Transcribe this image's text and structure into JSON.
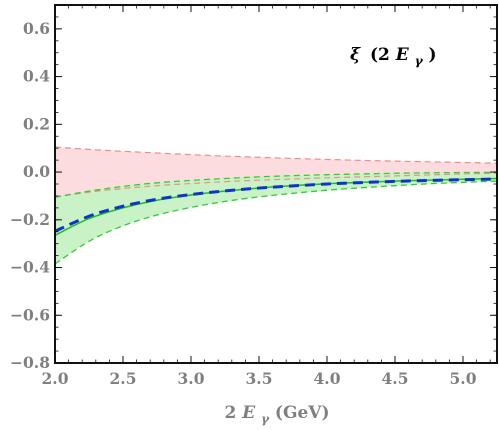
{
  "chart_data": {
    "type": "area",
    "title": "",
    "annotation": {
      "symbol": "ξ",
      "open": "(2 ",
      "var": "E",
      "sub": "γ",
      "close": ")"
    },
    "xlabel": {
      "prefix": "2 ",
      "var": "E",
      "sub": "γ",
      "unit": " (GeV)"
    },
    "ylabel": "",
    "xlim": [
      2.0,
      5.25
    ],
    "ylim": [
      -0.8,
      0.7
    ],
    "xticks": [
      2.0,
      2.5,
      3.0,
      3.5,
      4.0,
      4.5,
      5.0
    ],
    "yticks": [
      -0.8,
      -0.6,
      -0.4,
      -0.2,
      0.0,
      0.2,
      0.4,
      0.6
    ],
    "xtick_labels": [
      "2.0",
      "2.5",
      "3.0",
      "3.5",
      "4.0",
      "4.5",
      "5.0"
    ],
    "ytick_labels": [
      "−0.8",
      "−0.6",
      "−0.4",
      "−0.2",
      "0.0",
      "0.2",
      "0.4",
      "0.6"
    ],
    "grid": false,
    "x": [
      2.0,
      2.25,
      2.5,
      2.75,
      3.0,
      3.25,
      3.5,
      3.75,
      4.0,
      4.25,
      4.5,
      4.75,
      5.0,
      5.25
    ],
    "series": [
      {
        "role": "pink-band-upper",
        "values": [
          0.105,
          0.095,
          0.087,
          0.08,
          0.073,
          0.067,
          0.062,
          0.057,
          0.053,
          0.049,
          0.046,
          0.043,
          0.04,
          0.037
        ]
      },
      {
        "role": "pink-band-lower",
        "values": [
          -0.105,
          -0.084,
          -0.069,
          -0.057,
          -0.048,
          -0.04,
          -0.034,
          -0.029,
          -0.024,
          -0.02,
          -0.016,
          -0.012,
          -0.008,
          -0.005
        ]
      },
      {
        "role": "green-band-upper",
        "values": [
          -0.105,
          -0.08,
          -0.06,
          -0.045,
          -0.035,
          -0.027,
          -0.02,
          -0.015,
          -0.011,
          -0.008,
          -0.005,
          -0.003,
          -0.002,
          -0.001
        ]
      },
      {
        "role": "green-band-lower",
        "values": [
          -0.385,
          -0.29,
          -0.225,
          -0.18,
          -0.148,
          -0.123,
          -0.104,
          -0.089,
          -0.076,
          -0.066,
          -0.057,
          -0.049,
          -0.043,
          -0.038
        ]
      },
      {
        "role": "green-solid-line",
        "values": [
          -0.265,
          -0.195,
          -0.15,
          -0.118,
          -0.096,
          -0.08,
          -0.067,
          -0.057,
          -0.049,
          -0.043,
          -0.038,
          -0.034,
          -0.03,
          -0.027
        ]
      },
      {
        "role": "blue-dashed-line",
        "values": [
          -0.248,
          -0.185,
          -0.143,
          -0.114,
          -0.094,
          -0.079,
          -0.067,
          -0.058,
          -0.05,
          -0.044,
          -0.039,
          -0.035,
          -0.032,
          -0.029
        ]
      }
    ],
    "colors": {
      "pink_fill": "#fddcdf",
      "pink_edge": "#f08c8c",
      "green_fill": "#c9f3c6",
      "green_edge": "#33cc33",
      "green_line": "#22bb22",
      "blue_line": "#1133cc",
      "frame": "#111111",
      "tick_text": "#7f7f7f"
    }
  }
}
